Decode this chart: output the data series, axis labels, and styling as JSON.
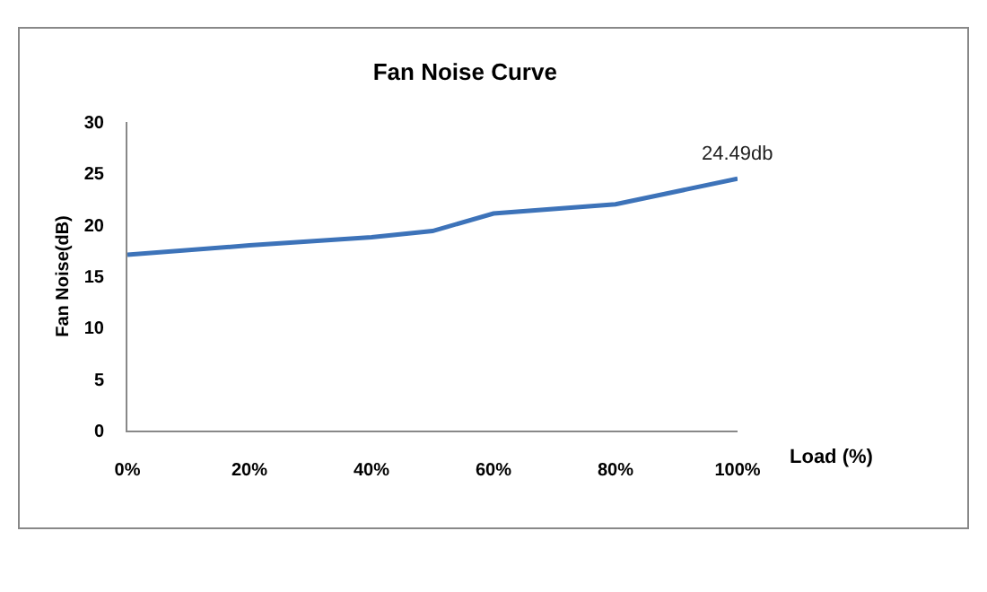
{
  "chart_data": {
    "type": "line",
    "title": "Fan Noise Curve",
    "xlabel": "Load (%)",
    "ylabel": "Fan Noise(dB)",
    "x": [
      0,
      20,
      40,
      50,
      60,
      80,
      100
    ],
    "series": [
      {
        "color": "#3d73b9",
        "values": [
          17.1,
          18.0,
          18.8,
          19.4,
          21.1,
          22.0,
          24.49
        ]
      }
    ],
    "xlim": [
      0,
      100
    ],
    "xticks": [
      {
        "value": 0,
        "label": "0%"
      },
      {
        "value": 20,
        "label": "20%"
      },
      {
        "value": 40,
        "label": "40%"
      },
      {
        "value": 60,
        "label": "60%"
      },
      {
        "value": 80,
        "label": "80%"
      },
      {
        "value": 100,
        "label": "100%"
      }
    ],
    "ylim": [
      0,
      30
    ],
    "yticks": [
      0,
      5,
      10,
      15,
      20,
      25,
      30
    ],
    "annotations": [
      {
        "text": "24.49db",
        "x": 100,
        "y": 24.49
      }
    ],
    "grid": false,
    "marker": "none",
    "line_style": "solid"
  }
}
